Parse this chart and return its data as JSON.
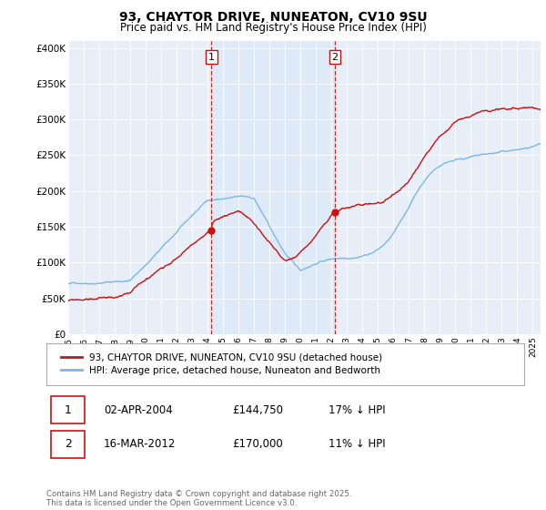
{
  "title_line1": "93, CHAYTOR DRIVE, NUNEATON, CV10 9SU",
  "title_line2": "Price paid vs. HM Land Registry's House Price Index (HPI)",
  "hpi_label": "HPI: Average price, detached house, Nuneaton and Bedworth",
  "price_label": "93, CHAYTOR DRIVE, NUNEATON, CV10 9SU (detached house)",
  "hpi_color": "#7ab8e8",
  "price_color": "#cc1111",
  "vline_color": "#cc1111",
  "shade_color": "#deeaf7",
  "grid_color": "#ffffff",
  "footer_text": "Contains HM Land Registry data © Crown copyright and database right 2025.\nThis data is licensed under the Open Government Licence v3.0.",
  "table_rows": [
    [
      "1",
      "02-APR-2004",
      "£144,750",
      "17% ↓ HPI"
    ],
    [
      "2",
      "16-MAR-2012",
      "£170,000",
      "11% ↓ HPI"
    ]
  ],
  "ylim_min": 0,
  "ylim_max": 410000,
  "yticks": [
    0,
    50000,
    100000,
    150000,
    200000,
    250000,
    300000,
    350000,
    400000
  ],
  "ytick_labels": [
    "£0",
    "£50K",
    "£100K",
    "£150K",
    "£200K",
    "£250K",
    "£300K",
    "£350K",
    "£400K"
  ],
  "xmin": 1995.0,
  "xmax": 2025.5,
  "sale1_x": 2004.25,
  "sale1_y": 144750,
  "sale2_x": 2012.21,
  "sale2_y": 170000,
  "background_color": "#e8eef8"
}
